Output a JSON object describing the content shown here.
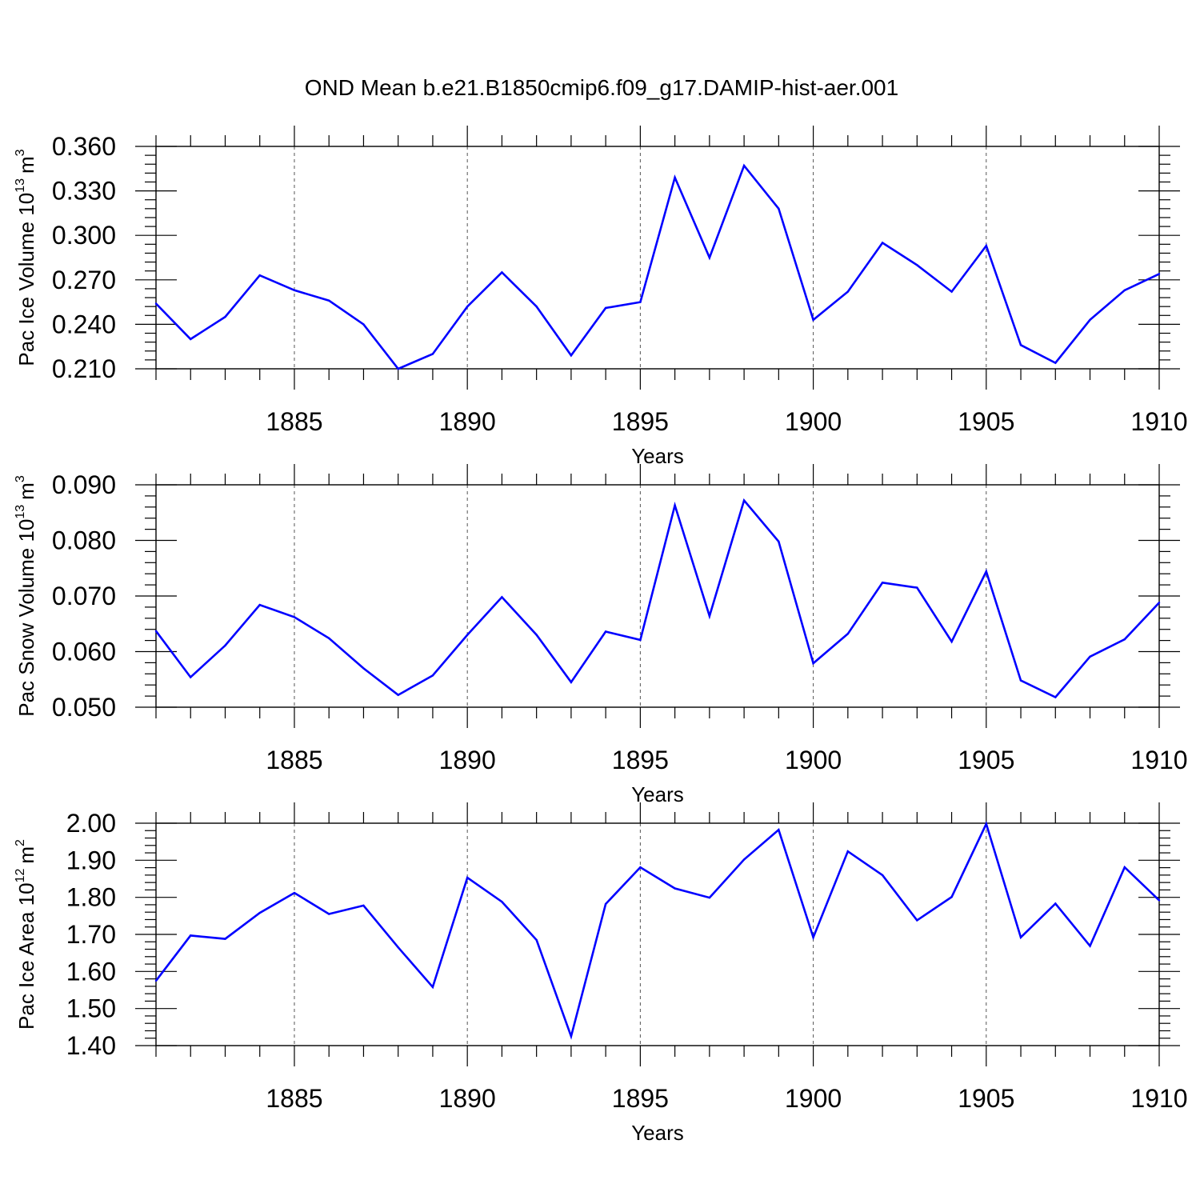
{
  "title": "OND Mean b.e21.B1850cmip6.f09_g17.DAMIP-hist-aer.001",
  "line_color": "#0000ff",
  "chart_data": [
    {
      "type": "line",
      "title": "OND Mean b.e21.B1850cmip6.f09_g17.DAMIP-hist-aer.001",
      "xlabel": "Years",
      "ylabel": {
        "prefix": "Pac Ice Volume 10",
        "exponent": "13",
        "unit": "m",
        "unit_exp": "3"
      },
      "xlim": [
        1881,
        1910
      ],
      "ylim": [
        0.21,
        0.36
      ],
      "xticks": [
        1885,
        1890,
        1895,
        1900,
        1905,
        1910
      ],
      "yticks": [
        0.21,
        0.24,
        0.27,
        0.3,
        0.33,
        0.36
      ],
      "ytick_labels": [
        "0.210",
        "0.240",
        "0.270",
        "0.300",
        "0.330",
        "0.360"
      ],
      "grid": "dashed vertical at major x ticks",
      "series": [
        {
          "name": "Pac Ice Volume",
          "x": [
            1881,
            1882,
            1883,
            1884,
            1885,
            1886,
            1887,
            1888,
            1889,
            1890,
            1891,
            1892,
            1893,
            1894,
            1895,
            1896,
            1897,
            1898,
            1899,
            1900,
            1901,
            1902,
            1903,
            1904,
            1905,
            1906,
            1907,
            1908,
            1909,
            1910
          ],
          "values": [
            0.254,
            0.23,
            0.245,
            0.273,
            0.263,
            0.256,
            0.24,
            0.21,
            0.22,
            0.252,
            0.275,
            0.252,
            0.219,
            0.251,
            0.255,
            0.339,
            0.285,
            0.347,
            0.318,
            0.243,
            0.262,
            0.295,
            0.28,
            0.262,
            0.293,
            0.226,
            0.214,
            0.243,
            0.263,
            0.274
          ]
        }
      ]
    },
    {
      "type": "line",
      "xlabel": "Years",
      "ylabel": {
        "prefix": "Pac Snow Volume 10",
        "exponent": "13",
        "unit": "m",
        "unit_exp": "3"
      },
      "xlim": [
        1881,
        1910
      ],
      "ylim": [
        0.05,
        0.09
      ],
      "xticks": [
        1885,
        1890,
        1895,
        1900,
        1905,
        1910
      ],
      "yticks": [
        0.05,
        0.06,
        0.07,
        0.08,
        0.09
      ],
      "ytick_labels": [
        "0.050",
        "0.060",
        "0.070",
        "0.080",
        "0.090"
      ],
      "grid": "dashed vertical at major x ticks",
      "series": [
        {
          "name": "Pac Snow Volume",
          "x": [
            1881,
            1882,
            1883,
            1884,
            1885,
            1886,
            1887,
            1888,
            1889,
            1890,
            1891,
            1892,
            1893,
            1894,
            1895,
            1896,
            1897,
            1898,
            1899,
            1900,
            1901,
            1902,
            1903,
            1904,
            1905,
            1906,
            1907,
            1908,
            1909,
            1910
          ],
          "values": [
            0.0637,
            0.0554,
            0.0611,
            0.0684,
            0.0662,
            0.0624,
            0.057,
            0.0522,
            0.0557,
            0.063,
            0.0698,
            0.063,
            0.0545,
            0.0636,
            0.0621,
            0.0863,
            0.0664,
            0.0872,
            0.0798,
            0.0579,
            0.0632,
            0.0724,
            0.0715,
            0.0618,
            0.0744,
            0.0548,
            0.0518,
            0.0591,
            0.0622,
            0.0688
          ]
        }
      ]
    },
    {
      "type": "line",
      "xlabel": "Years",
      "ylabel": {
        "prefix": "Pac Ice Area 10",
        "exponent": "12",
        "unit": "m",
        "unit_exp": "2"
      },
      "xlim": [
        1881,
        1910
      ],
      "ylim": [
        1.4,
        2.0
      ],
      "xticks": [
        1885,
        1890,
        1895,
        1900,
        1905,
        1910
      ],
      "yticks": [
        1.4,
        1.5,
        1.6,
        1.7,
        1.8,
        1.9,
        2.0
      ],
      "ytick_labels": [
        "1.40",
        "1.50",
        "1.60",
        "1.70",
        "1.80",
        "1.90",
        "2.00"
      ],
      "grid": "dashed vertical at major x ticks",
      "series": [
        {
          "name": "Pac Ice Area",
          "x": [
            1881,
            1882,
            1883,
            1884,
            1885,
            1886,
            1887,
            1888,
            1889,
            1890,
            1891,
            1892,
            1893,
            1894,
            1895,
            1896,
            1897,
            1898,
            1899,
            1900,
            1901,
            1902,
            1903,
            1904,
            1905,
            1906,
            1907,
            1908,
            1909,
            1910
          ],
          "values": [
            1.575,
            1.697,
            1.688,
            1.758,
            1.812,
            1.755,
            1.778,
            1.665,
            1.558,
            1.853,
            1.788,
            1.685,
            1.425,
            1.782,
            1.881,
            1.824,
            1.799,
            1.902,
            1.982,
            1.692,
            1.924,
            1.86,
            1.738,
            1.801,
            1.998,
            1.692,
            1.783,
            1.669,
            1.881,
            1.792
          ]
        }
      ]
    }
  ]
}
